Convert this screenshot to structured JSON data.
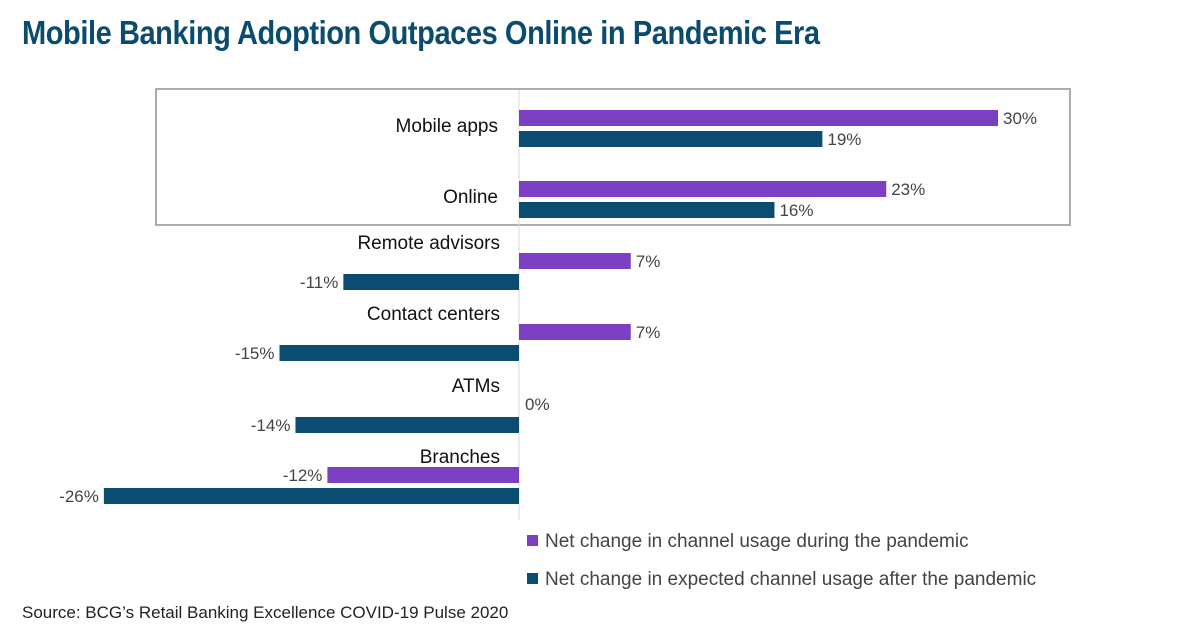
{
  "title": "Mobile Banking Adoption Outpaces Online in Pandemic Era",
  "source": "Source: BCG’s Retail Banking Excellence COVID-19 Pulse 2020",
  "colors": {
    "title": "#0b4c6e",
    "during": "#7b3fc4",
    "after": "#0a4d70",
    "highlight_border": "#b3a8ab",
    "axis": "#d9d9d9",
    "label": "#111111",
    "value": "#444444"
  },
  "chart_data": {
    "type": "bar",
    "orientation": "horizontal",
    "title": "Mobile Banking Adoption Outpaces Online in Pandemic Era",
    "categories": [
      "Mobile apps",
      "Online",
      "Remote advisors",
      "Contact centers",
      "ATMs",
      "Branches"
    ],
    "series": [
      {
        "name": "Net change in channel usage during the pandemic",
        "values": [
          30,
          23,
          7,
          7,
          0,
          -12
        ]
      },
      {
        "name": "Net change in expected channel usage after the pandemic",
        "values": [
          19,
          16,
          -11,
          -15,
          -14,
          -26
        ]
      }
    ],
    "value_labels": [
      [
        "30%",
        "23%",
        "7%",
        "7%",
        "0%",
        "-12%"
      ],
      [
        "19%",
        "16%",
        "-11%",
        "-15%",
        "-14%",
        "-26%"
      ]
    ],
    "unit": "%",
    "xlim": [
      -26,
      30
    ],
    "highlighted_categories": [
      "Mobile apps",
      "Online"
    ],
    "legend_position": "bottom-right",
    "xlabel": "",
    "ylabel": ""
  }
}
